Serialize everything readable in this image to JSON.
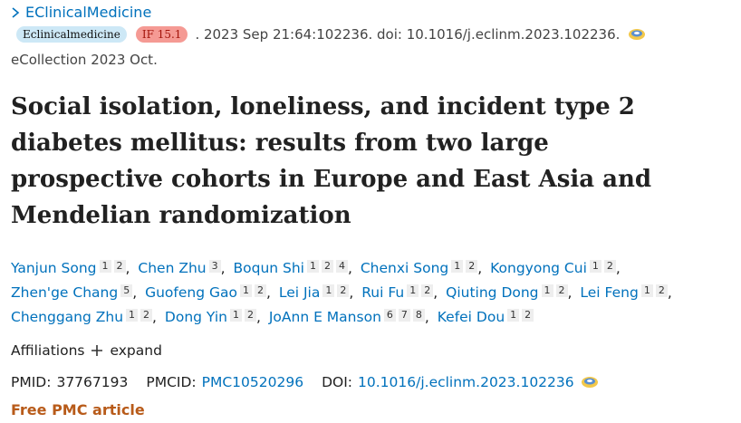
{
  "journal_link": "EClinicalMedicine",
  "journal_badge": "Eclinicalmedicine",
  "impact_badge": "IF 15.1",
  "citation": ". 2023 Sep 21:64:102236. doi: 10.1016/j.eclinm.2023.102236.",
  "ecollection": "eCollection 2023 Oct.",
  "title": "Social isolation, loneliness, and incident type 2 diabetes mellitus: results from two large prospective cohorts in Europe and East Asia and Mendelian randomization",
  "authors": [
    {
      "name": "Yanjun Song",
      "affiliations": [
        1,
        2
      ]
    },
    {
      "name": "Chen Zhu",
      "affiliations": [
        3
      ]
    },
    {
      "name": "Boqun Shi",
      "affiliations": [
        1,
        2,
        4
      ]
    },
    {
      "name": "Chenxi Song",
      "affiliations": [
        1,
        2
      ]
    },
    {
      "name": "Kongyong Cui",
      "affiliations": [
        1,
        2
      ]
    },
    {
      "name": "Zhen'ge Chang",
      "affiliations": [
        5
      ]
    },
    {
      "name": "Guofeng Gao",
      "affiliations": [
        1,
        2
      ]
    },
    {
      "name": "Lei Jia",
      "affiliations": [
        1,
        2
      ]
    },
    {
      "name": "Rui Fu",
      "affiliations": [
        1,
        2
      ]
    },
    {
      "name": "Qiuting Dong",
      "affiliations": [
        1,
        2
      ]
    },
    {
      "name": "Lei Feng",
      "affiliations": [
        1,
        2
      ]
    },
    {
      "name": "Chenggang Zhu",
      "affiliations": [
        1,
        2
      ]
    },
    {
      "name": "Dong Yin",
      "affiliations": [
        1,
        2
      ]
    },
    {
      "name": "JoAnn E Manson",
      "affiliations": [
        6,
        7,
        8
      ]
    },
    {
      "name": "Kefei Dou",
      "affiliations": [
        1,
        2
      ]
    }
  ],
  "affiliations_label": "Affiliations",
  "expand": "expand",
  "identifiers": {
    "pmid_label": "PMID:",
    "pmid": "37767193",
    "pmcid_label": "PMCID:",
    "pmcid": "PMC10520296",
    "doi_label": "DOI:",
    "doi": "10.1016/j.eclinm.2023.102236"
  },
  "free_pmc": "Free PMC article"
}
